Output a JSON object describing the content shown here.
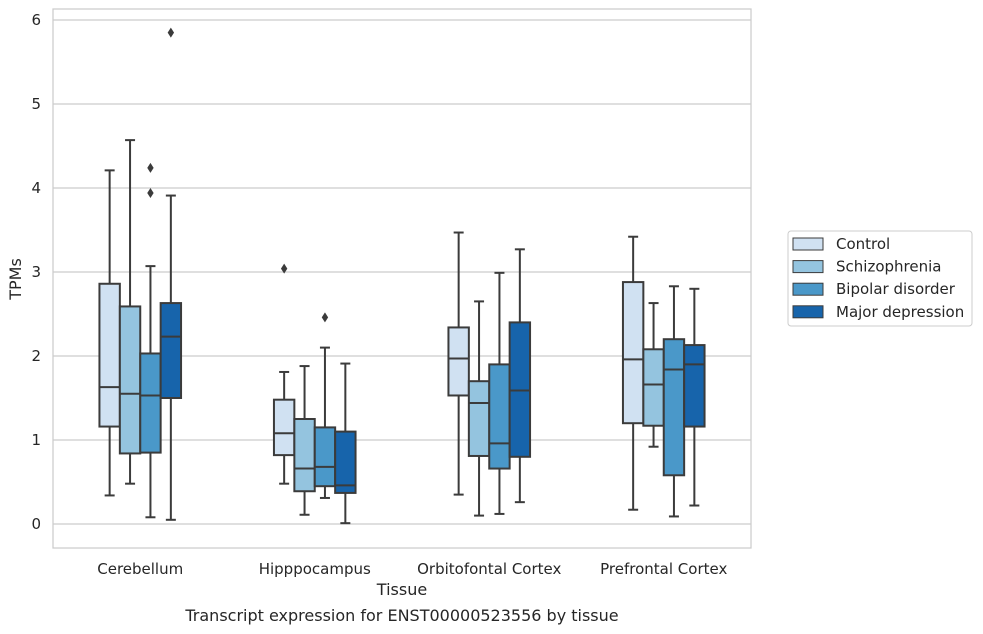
{
  "caption": "Transcript expression for ENST00000523556 by tissue",
  "chart_data": {
    "type": "box",
    "xlabel": "Tissue",
    "ylabel": "TPMs",
    "ylim": [
      -0.28,
      6.13
    ],
    "yticks": [
      0,
      1,
      2,
      3,
      4,
      5,
      6
    ],
    "grid": true,
    "legend_position": "right",
    "categories": [
      "Cerebellum",
      "Hipppocampus",
      "Orbitofontal Cortex",
      "Prefrontal Cortex"
    ],
    "series": [
      {
        "name": "Control",
        "color": "#d0e1f2",
        "boxes": [
          {
            "whisker_low": 0.34,
            "q1": 1.16,
            "median": 1.63,
            "q3": 2.86,
            "whisker_high": 4.21,
            "outliers": []
          },
          {
            "whisker_low": 0.48,
            "q1": 0.82,
            "median": 1.08,
            "q3": 1.48,
            "whisker_high": 1.81,
            "outliers": [
              3.04
            ]
          },
          {
            "whisker_low": 0.35,
            "q1": 1.53,
            "median": 1.97,
            "q3": 2.34,
            "whisker_high": 3.47,
            "outliers": []
          },
          {
            "whisker_low": 0.17,
            "q1": 1.2,
            "median": 1.96,
            "q3": 2.88,
            "whisker_high": 3.42,
            "outliers": []
          }
        ]
      },
      {
        "name": "Schizophrenia",
        "color": "#94c4df",
        "boxes": [
          {
            "whisker_low": 0.48,
            "q1": 0.84,
            "median": 1.55,
            "q3": 2.59,
            "whisker_high": 4.57,
            "outliers": []
          },
          {
            "whisker_low": 0.11,
            "q1": 0.39,
            "median": 0.66,
            "q3": 1.25,
            "whisker_high": 1.88,
            "outliers": []
          },
          {
            "whisker_low": 0.1,
            "q1": 0.81,
            "median": 1.44,
            "q3": 1.7,
            "whisker_high": 2.65,
            "outliers": []
          },
          {
            "whisker_low": 0.92,
            "q1": 1.17,
            "median": 1.66,
            "q3": 2.08,
            "whisker_high": 2.63,
            "outliers": []
          }
        ]
      },
      {
        "name": "Bipolar disorder",
        "color": "#4a98c9",
        "boxes": [
          {
            "whisker_low": 0.08,
            "q1": 0.85,
            "median": 1.53,
            "q3": 2.03,
            "whisker_high": 3.07,
            "outliers": [
              3.94,
              4.24
            ]
          },
          {
            "whisker_low": 0.31,
            "q1": 0.45,
            "median": 0.68,
            "q3": 1.15,
            "whisker_high": 2.1,
            "outliers": [
              2.46
            ]
          },
          {
            "whisker_low": 0.12,
            "q1": 0.66,
            "median": 0.96,
            "q3": 1.9,
            "whisker_high": 2.99,
            "outliers": []
          },
          {
            "whisker_low": 0.09,
            "q1": 0.58,
            "median": 1.84,
            "q3": 2.2,
            "whisker_high": 2.83,
            "outliers": []
          }
        ]
      },
      {
        "name": "Major depression",
        "color": "#1764ab",
        "boxes": [
          {
            "whisker_low": 0.05,
            "q1": 1.5,
            "median": 2.23,
            "q3": 2.63,
            "whisker_high": 3.91,
            "outliers": [
              5.85
            ]
          },
          {
            "whisker_low": 0.01,
            "q1": 0.37,
            "median": 0.46,
            "q3": 1.1,
            "whisker_high": 1.91,
            "outliers": []
          },
          {
            "whisker_low": 0.26,
            "q1": 0.8,
            "median": 1.59,
            "q3": 2.4,
            "whisker_high": 3.27,
            "outliers": []
          },
          {
            "whisker_low": 0.22,
            "q1": 1.16,
            "median": 1.9,
            "q3": 2.13,
            "whisker_high": 2.8,
            "outliers": []
          }
        ]
      }
    ]
  }
}
